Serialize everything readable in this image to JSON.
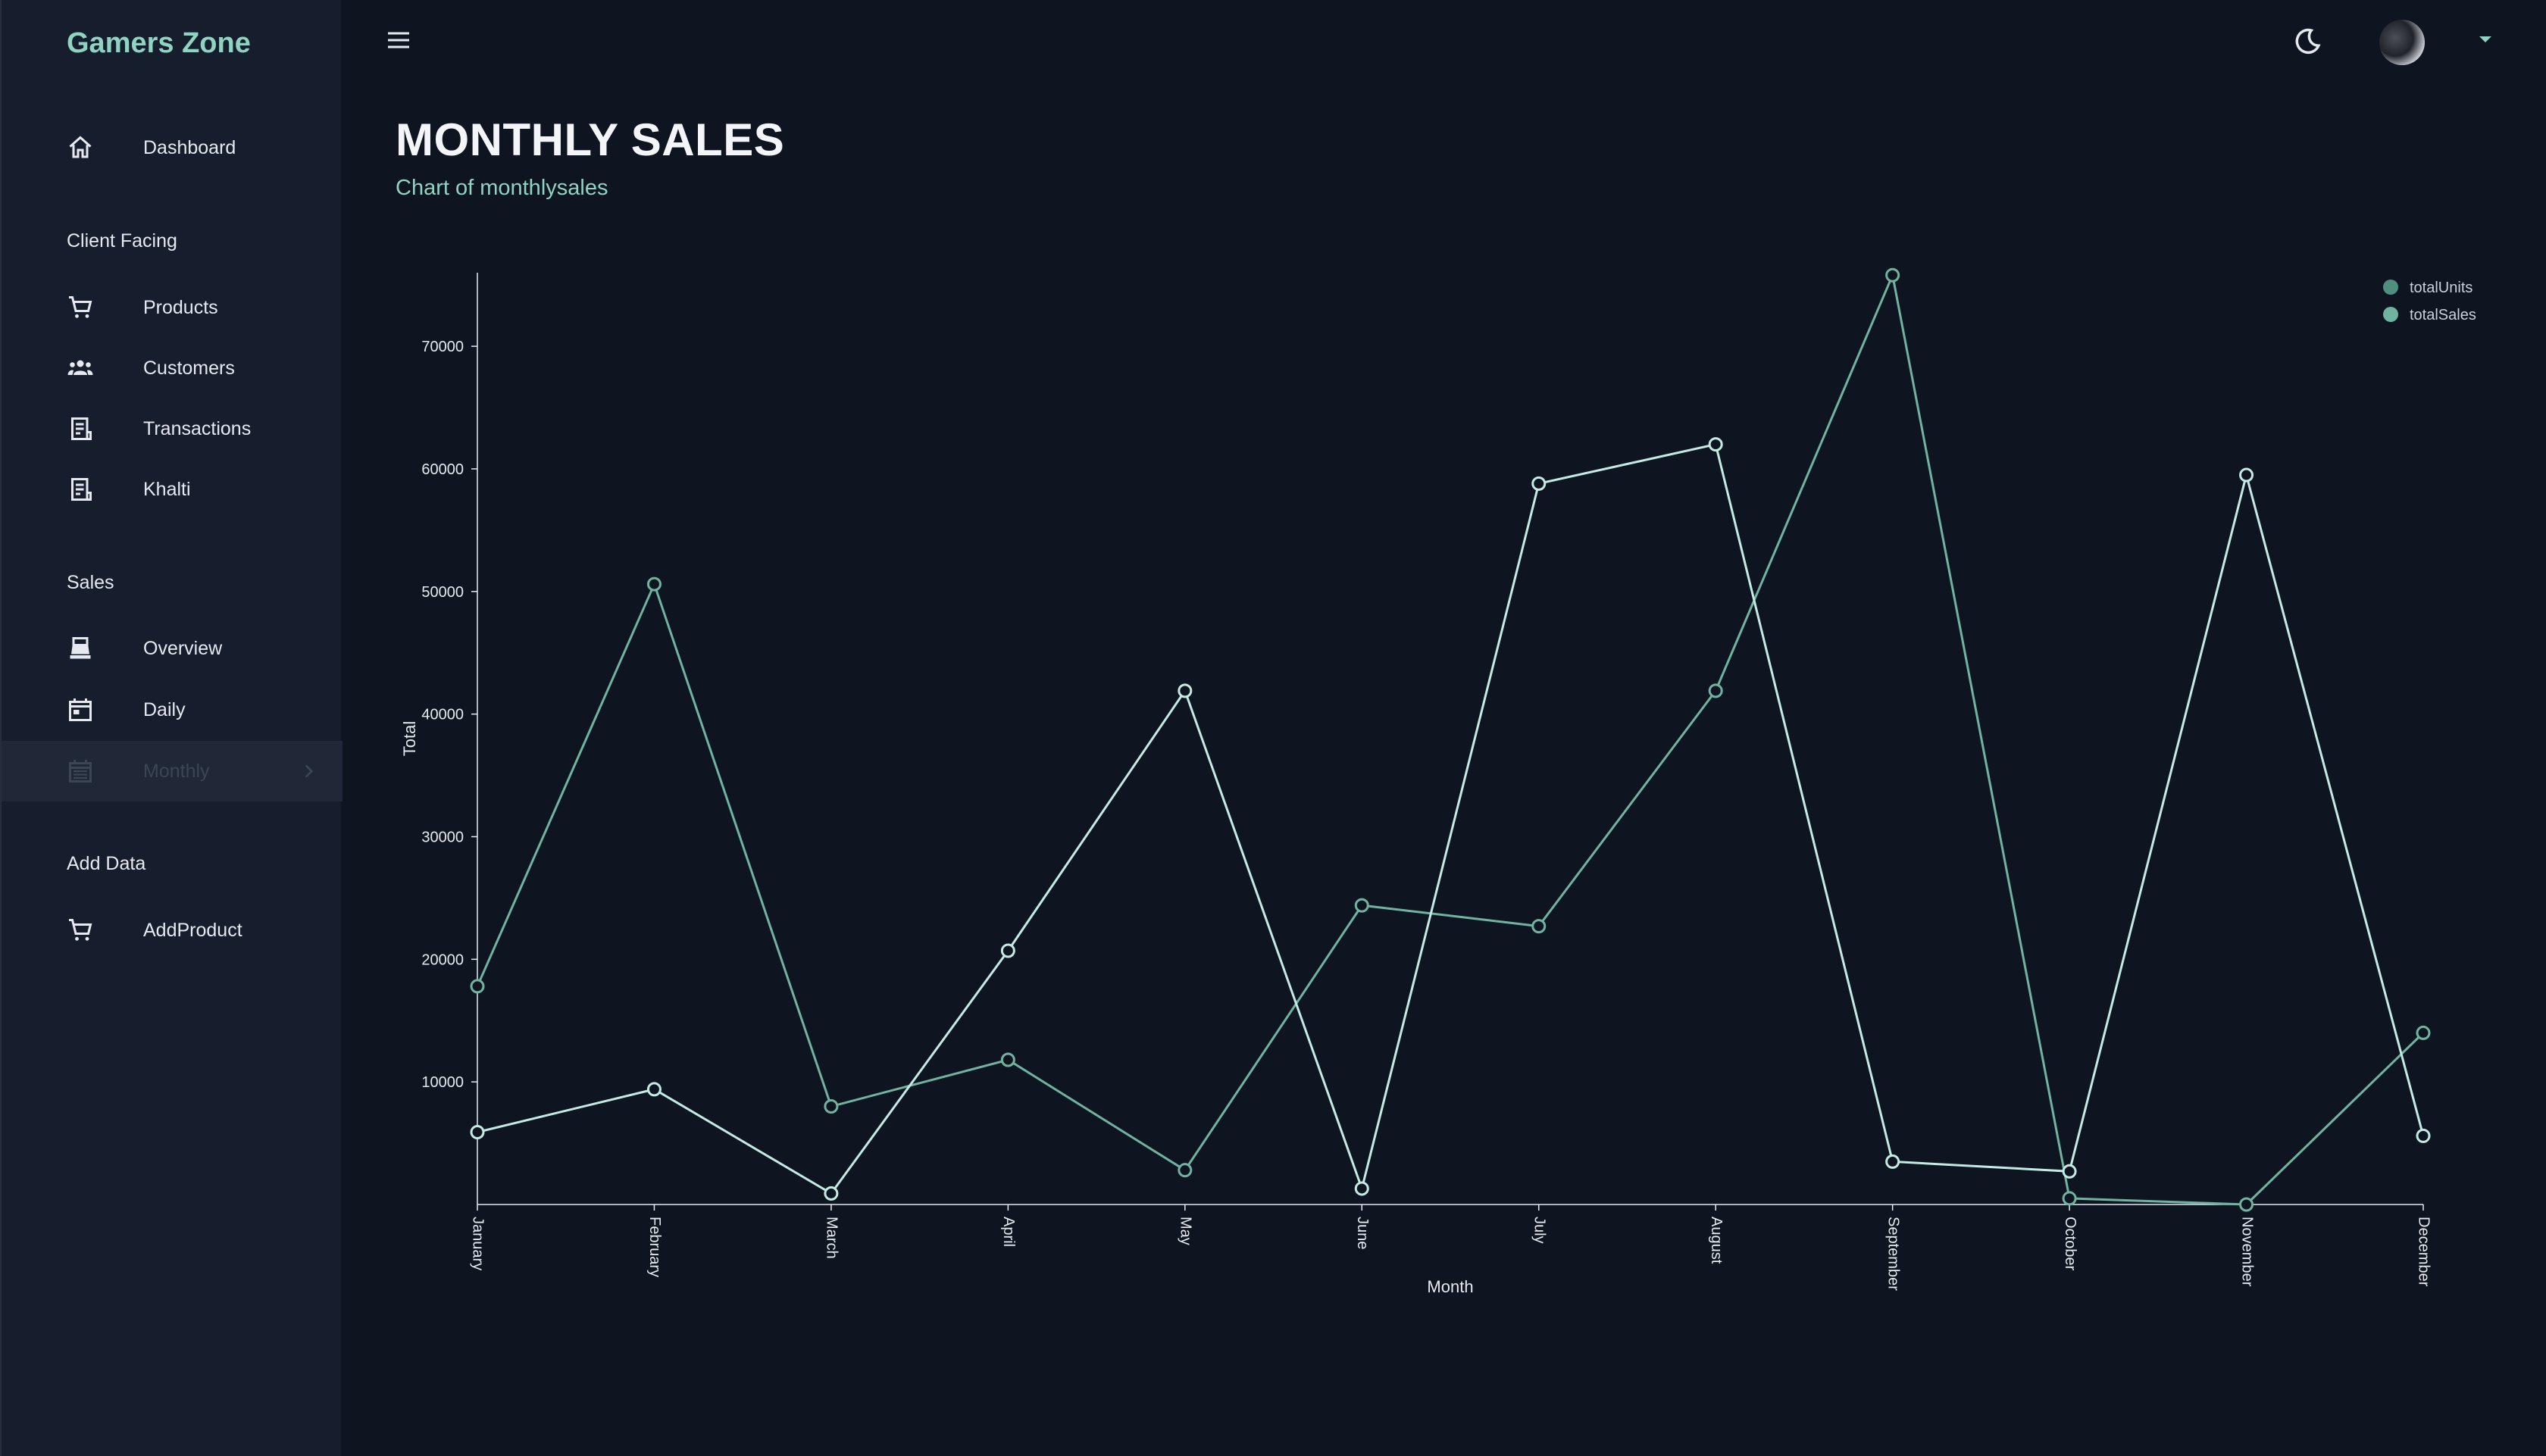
{
  "app": {
    "brand": "Gamers Zone"
  },
  "sidebar": {
    "dashboard": {
      "label": "Dashboard",
      "icon": "home-icon"
    },
    "sections": {
      "client_facing": "Client Facing",
      "sales": "Sales",
      "add_data": "Add Data"
    },
    "client_items": [
      {
        "label": "Products",
        "icon": "cart-icon"
      },
      {
        "label": "Customers",
        "icon": "group-icon"
      },
      {
        "label": "Transactions",
        "icon": "receipt-icon"
      },
      {
        "label": "Khalti",
        "icon": "receipt-icon"
      }
    ],
    "sales_items": [
      {
        "label": "Overview",
        "icon": "point-of-sale-icon"
      },
      {
        "label": "Daily",
        "icon": "calendar-icon"
      },
      {
        "label": "Monthly",
        "icon": "calendar-month-icon",
        "active": true
      }
    ],
    "add_items": [
      {
        "label": "AddProduct",
        "icon": "cart-icon"
      }
    ]
  },
  "topbar": {
    "menu_icon": "hamburger-icon",
    "theme_icon": "moon-icon",
    "account_icon": "caret-down-icon"
  },
  "header": {
    "title": "MONTHLY SALES",
    "subtitle": "Chart of monthlysales"
  },
  "colors": {
    "brand": "#8fd3c1",
    "sidebar_bg": "#161d2d",
    "page_bg": "#0f1520",
    "units_line": "#6fb3a0",
    "sales_line": "#c3ebe3"
  },
  "chart_data": {
    "type": "line",
    "xlabel": "Month",
    "ylabel": "Total",
    "ylim": [
      0,
      76000
    ],
    "yticks": [
      10000,
      20000,
      30000,
      40000,
      50000,
      60000,
      70000
    ],
    "categories": [
      "January",
      "February",
      "March",
      "April",
      "May",
      "June",
      "July",
      "August",
      "September",
      "October",
      "November",
      "December"
    ],
    "series": [
      {
        "name": "totalUnits",
        "values": [
          17800,
          50600,
          8000,
          11800,
          2800,
          24400,
          22700,
          41900,
          75800,
          500,
          0,
          14000
        ]
      },
      {
        "name": "totalSales",
        "values": [
          5900,
          9400,
          900,
          20700,
          41900,
          1300,
          58800,
          62000,
          3500,
          2700,
          59500,
          5600
        ]
      }
    ],
    "legend": "top-right",
    "grid": false
  }
}
